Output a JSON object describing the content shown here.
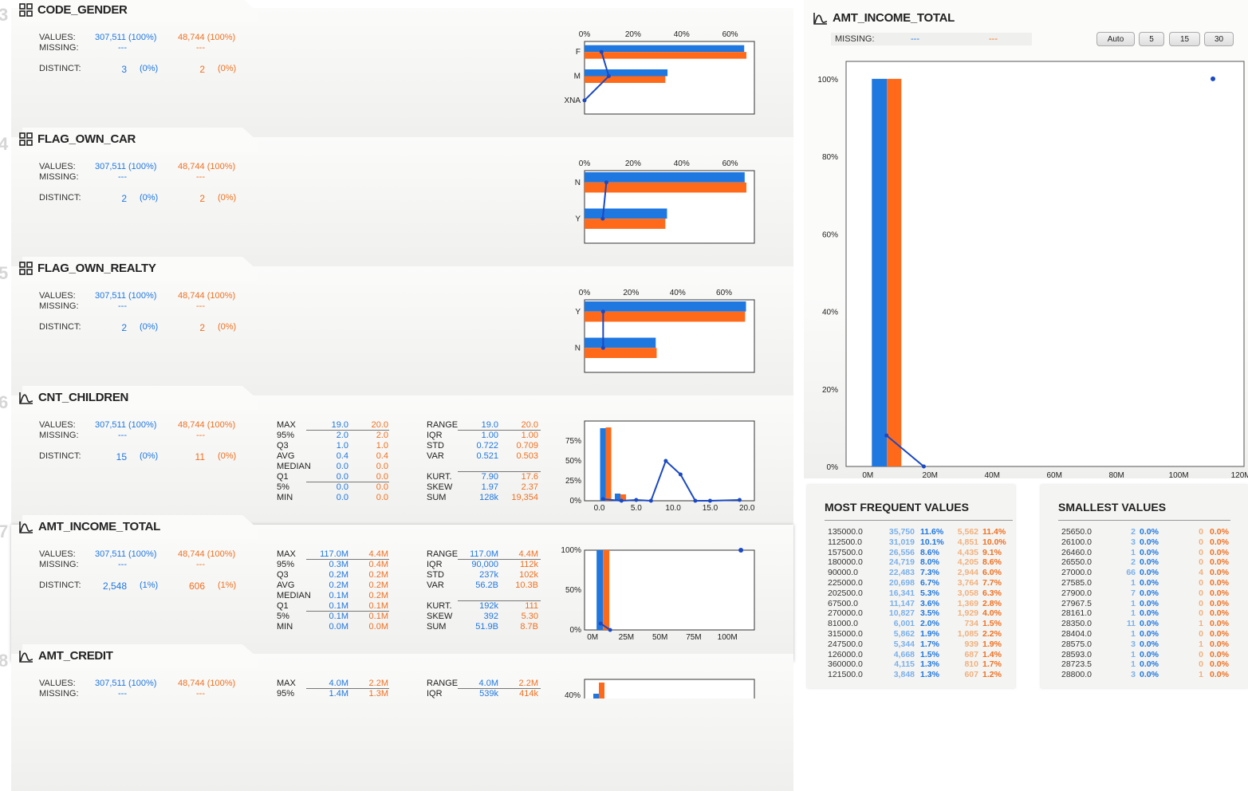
{
  "colors": {
    "blue": "#1f77e0",
    "orange": "#ff6a1a",
    "line": "#1b49c2"
  },
  "labels": {
    "values": "VALUES:",
    "missing": "MISSING:",
    "distinct": "DISTINCT:"
  },
  "stat_labels": {
    "left": [
      "MAX",
      "95%",
      "Q3",
      "AVG",
      "MEDIAN",
      "Q1",
      "5%",
      "MIN"
    ],
    "right": [
      "RANGE",
      "IQR",
      "STD",
      "VAR",
      "",
      "KURT.",
      "SKEW",
      "SUM"
    ]
  },
  "cards": [
    {
      "idx": "3",
      "name": "CODE_GENDER",
      "icon": "grid",
      "values_a": "307,511 (100%)",
      "values_b": "48,744 (100%)",
      "missing_a": "---",
      "missing_b": "---",
      "distinct_a": "3",
      "distinct_pa": "(0%)",
      "distinct_b": "2",
      "distinct_pb": "(0%)"
    },
    {
      "idx": "4",
      "name": "FLAG_OWN_CAR",
      "icon": "grid",
      "values_a": "307,511 (100%)",
      "values_b": "48,744 (100%)",
      "missing_a": "---",
      "missing_b": "---",
      "distinct_a": "2",
      "distinct_pa": "(0%)",
      "distinct_b": "2",
      "distinct_pb": "(0%)"
    },
    {
      "idx": "5",
      "name": "FLAG_OWN_REALTY",
      "icon": "grid",
      "values_a": "307,511 (100%)",
      "values_b": "48,744 (100%)",
      "missing_a": "---",
      "missing_b": "---",
      "distinct_a": "2",
      "distinct_pa": "(0%)",
      "distinct_b": "2",
      "distinct_pb": "(0%)"
    },
    {
      "idx": "6",
      "name": "CNT_CHILDREN",
      "icon": "curve",
      "values_a": "307,511 (100%)",
      "values_b": "48,744 (100%)",
      "missing_a": "---",
      "missing_b": "---",
      "distinct_a": "15",
      "distinct_pa": "(0%)",
      "distinct_b": "11",
      "distinct_pb": "(0%)",
      "stats_left_a": [
        "19.0",
        "2.0",
        "1.0",
        "0.4",
        "0.0",
        "0.0",
        "0.0",
        "0.0"
      ],
      "stats_left_b": [
        "20.0",
        "2.0",
        "1.0",
        "0.4",
        "0.0",
        "0.0",
        "0.0",
        "0.0"
      ],
      "stats_right_a": [
        "19.0",
        "1.00",
        "0.722",
        "0.521",
        "",
        "7.90",
        "1.97",
        "128k"
      ],
      "stats_right_b": [
        "20.0",
        "1.00",
        "0.709",
        "0.503",
        "",
        "17.6",
        "2.37",
        "19,354"
      ]
    },
    {
      "idx": "7",
      "name": "AMT_INCOME_TOTAL",
      "icon": "curve",
      "values_a": "307,511 (100%)",
      "values_b": "48,744 (100%)",
      "missing_a": "---",
      "missing_b": "---",
      "distinct_a": "2,548",
      "distinct_pa": "(1%)",
      "distinct_b": "606",
      "distinct_pb": "(1%)",
      "stats_left_a": [
        "117.0M",
        "0.3M",
        "0.2M",
        "0.2M",
        "0.1M",
        "0.1M",
        "0.1M",
        "0.0M"
      ],
      "stats_left_b": [
        "4.4M",
        "0.4M",
        "0.2M",
        "0.2M",
        "0.2M",
        "0.1M",
        "0.1M",
        "0.0M"
      ],
      "stats_right_a": [
        "117.0M",
        "90,000",
        "237k",
        "56.2B",
        "",
        "192k",
        "392",
        "51.9B"
      ],
      "stats_right_b": [
        "4.4M",
        "112k",
        "102k",
        "10.3B",
        "",
        "111",
        "5.30",
        "8.7B"
      ]
    },
    {
      "idx": "8",
      "name": "AMT_CREDIT",
      "icon": "curve",
      "values_a": "307,511 (100%)",
      "values_b": "48,744 (100%)",
      "missing_a": "---",
      "missing_b": "---",
      "stats_left_a": [
        "4.0M",
        "1.4M"
      ],
      "stats_left_b": [
        "2.2M",
        "1.3M"
      ],
      "stats_right_a": [
        "4.0M",
        "539k"
      ],
      "stats_right_b": [
        "2.2M",
        "414k"
      ]
    }
  ],
  "chart_data": [
    {
      "type": "bar",
      "orientation": "horizontal",
      "variable": "CODE_GENDER",
      "categories": [
        "F",
        "M",
        "XNA"
      ],
      "series": [
        {
          "name": "train",
          "values": [
            65.8,
            34.2,
            0.0
          ]
        },
        {
          "name": "test",
          "values": [
            66.7,
            33.3,
            0.0
          ]
        }
      ],
      "line": [
        7,
        10,
        0
      ],
      "xlim": [
        0,
        70
      ],
      "xticks": [
        "0%",
        "20%",
        "40%",
        "60%"
      ]
    },
    {
      "type": "bar",
      "orientation": "horizontal",
      "variable": "FLAG_OWN_CAR",
      "categories": [
        "N",
        "Y"
      ],
      "series": [
        {
          "name": "train",
          "values": [
            66.0,
            34.0
          ]
        },
        {
          "name": "test",
          "values": [
            66.7,
            33.3
          ]
        }
      ],
      "line": [
        9,
        7.5
      ],
      "xlim": [
        0,
        70
      ],
      "xticks": [
        "0%",
        "20%",
        "40%",
        "60%"
      ]
    },
    {
      "type": "bar",
      "orientation": "horizontal",
      "variable": "FLAG_OWN_REALTY",
      "categories": [
        "Y",
        "N"
      ],
      "series": [
        {
          "name": "train",
          "values": [
            69.4,
            30.6
          ]
        },
        {
          "name": "test",
          "values": [
            69.0,
            31.0
          ]
        }
      ],
      "line": [
        8,
        8
      ],
      "xlim": [
        0,
        73
      ],
      "xticks": [
        "0%",
        "20%",
        "40%",
        "60%"
      ]
    },
    {
      "type": "histogram",
      "variable": "CNT_CHILDREN",
      "xlim": [
        -2,
        21
      ],
      "ylim": [
        0,
        100
      ],
      "xticks": [
        "0.0",
        "5.0",
        "10.0",
        "15.0",
        "20.0"
      ],
      "yticks": [
        "0%",
        "25%",
        "50%",
        "75%"
      ],
      "bins": [
        {
          "x": 0,
          "a": 91,
          "b": 92
        },
        {
          "x": 2,
          "a": 9,
          "b": 8
        },
        {
          "x": 4,
          "a": 0.5,
          "b": 0.5
        }
      ],
      "line": [
        [
          0.5,
          2
        ],
        [
          3,
          0
        ],
        [
          5,
          1
        ],
        [
          7,
          0
        ],
        [
          9,
          50
        ],
        [
          11,
          33
        ],
        [
          13,
          0
        ],
        [
          15,
          0
        ],
        [
          19,
          1
        ]
      ]
    },
    {
      "type": "histogram",
      "variable": "AMT_INCOME_TOTAL",
      "xlim": [
        -6,
        120
      ],
      "ylim": [
        0,
        100
      ],
      "xticks": [
        "0M",
        "25M",
        "50M",
        "75M",
        "100M"
      ],
      "yticks": [
        "0%",
        "50%",
        "100%"
      ],
      "bins": [
        {
          "x": 0,
          "a": 100,
          "b": 100
        }
      ],
      "line": [
        [
          6,
          8
        ],
        [
          13,
          0
        ]
      ],
      "point": [
        110,
        100
      ]
    },
    {
      "type": "histogram",
      "variable": "AMT_CREDIT",
      "yticks": [
        "40%"
      ]
    },
    {
      "type": "histogram",
      "variable": "AMT_INCOME_TOTAL (detail)",
      "xlim": [
        -7,
        121
      ],
      "ylim": [
        0,
        100
      ],
      "xticks": [
        "0M",
        "20M",
        "40M",
        "60M",
        "80M",
        "100M",
        "120M"
      ],
      "yticks": [
        "0%",
        "20%",
        "40%",
        "60%",
        "80%",
        "100%"
      ],
      "bins": [
        {
          "x": 0,
          "a": 100,
          "b": 100
        }
      ],
      "line": [
        [
          6,
          8
        ],
        [
          18,
          0
        ]
      ],
      "point": [
        111,
        100
      ]
    }
  ],
  "detail": {
    "title": "AMT_INCOME_TOTAL",
    "missing_label": "MISSING:",
    "missing_a": "---",
    "missing_b": "---",
    "buttons": [
      "Auto",
      "5",
      "15",
      "30"
    ],
    "freq_title": "MOST FREQUENT VALUES",
    "freq": [
      [
        "135000.0",
        "35,750",
        "11.6%",
        "5,562",
        "11.4%"
      ],
      [
        "112500.0",
        "31,019",
        "10.1%",
        "4,851",
        "10.0%"
      ],
      [
        "157500.0",
        "26,556",
        "8.6%",
        "4,435",
        "9.1%"
      ],
      [
        "180000.0",
        "24,719",
        "8.0%",
        "4,205",
        "8.6%"
      ],
      [
        "90000.0",
        "22,483",
        "7.3%",
        "2,944",
        "6.0%"
      ],
      [
        "225000.0",
        "20,698",
        "6.7%",
        "3,764",
        "7.7%"
      ],
      [
        "202500.0",
        "16,341",
        "5.3%",
        "3,058",
        "6.3%"
      ],
      [
        "67500.0",
        "11,147",
        "3.6%",
        "1,369",
        "2.8%"
      ],
      [
        "270000.0",
        "10,827",
        "3.5%",
        "1,929",
        "4.0%"
      ],
      [
        "81000.0",
        "6,001",
        "2.0%",
        "734",
        "1.5%"
      ],
      [
        "315000.0",
        "5,862",
        "1.9%",
        "1,085",
        "2.2%"
      ],
      [
        "247500.0",
        "5,344",
        "1.7%",
        "939",
        "1.9%"
      ],
      [
        "126000.0",
        "4,668",
        "1.5%",
        "687",
        "1.4%"
      ],
      [
        "360000.0",
        "4,115",
        "1.3%",
        "810",
        "1.7%"
      ],
      [
        "121500.0",
        "3,848",
        "1.3%",
        "607",
        "1.2%"
      ]
    ],
    "small_title": "SMALLEST VALUES",
    "small": [
      [
        "25650.0",
        "2",
        "0.0%",
        "0",
        "0.0%"
      ],
      [
        "26100.0",
        "3",
        "0.0%",
        "0",
        "0.0%"
      ],
      [
        "26460.0",
        "1",
        "0.0%",
        "0",
        "0.0%"
      ],
      [
        "26550.0",
        "2",
        "0.0%",
        "0",
        "0.0%"
      ],
      [
        "27000.0",
        "66",
        "0.0%",
        "4",
        "0.0%"
      ],
      [
        "27585.0",
        "1",
        "0.0%",
        "0",
        "0.0%"
      ],
      [
        "27900.0",
        "7",
        "0.0%",
        "0",
        "0.0%"
      ],
      [
        "27967.5",
        "1",
        "0.0%",
        "0",
        "0.0%"
      ],
      [
        "28161.0",
        "1",
        "0.0%",
        "0",
        "0.0%"
      ],
      [
        "28350.0",
        "11",
        "0.0%",
        "1",
        "0.0%"
      ],
      [
        "28404.0",
        "1",
        "0.0%",
        "0",
        "0.0%"
      ],
      [
        "28575.0",
        "3",
        "0.0%",
        "1",
        "0.0%"
      ],
      [
        "28593.0",
        "1",
        "0.0%",
        "0",
        "0.0%"
      ],
      [
        "28723.5",
        "1",
        "0.0%",
        "0",
        "0.0%"
      ],
      [
        "28800.0",
        "3",
        "0.0%",
        "1",
        "0.0%"
      ]
    ]
  }
}
